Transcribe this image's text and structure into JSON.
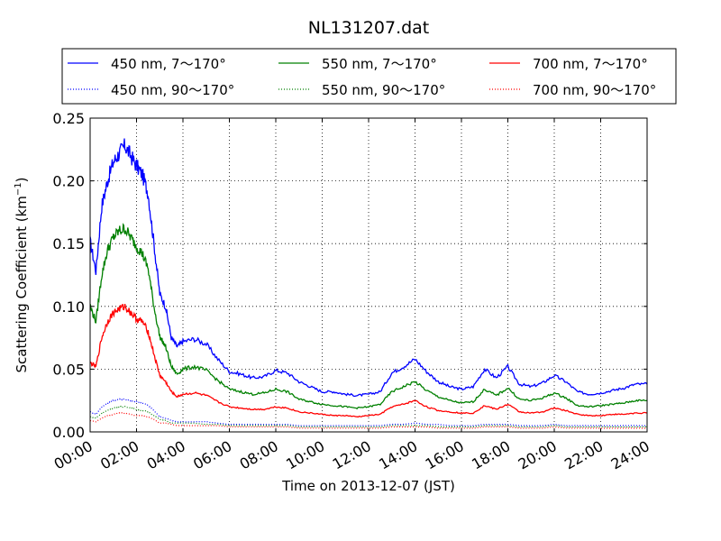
{
  "chart_data": {
    "type": "line",
    "title": "NL131207.dat",
    "xlabel": "Time on 2013-12-07 (JST)",
    "ylabel": "Scattering Coefficient (km",
    "ylabel_sup": "−1",
    "ylabel_close": ")",
    "xlim": [
      0,
      24
    ],
    "ylim": [
      0,
      0.25
    ],
    "x_ticks": [
      0,
      2,
      4,
      6,
      8,
      10,
      12,
      14,
      16,
      18,
      20,
      22,
      24
    ],
    "x_tick_labels": [
      "00:00",
      "02:00",
      "04:00",
      "06:00",
      "08:00",
      "10:00",
      "12:00",
      "14:00",
      "16:00",
      "18:00",
      "20:00",
      "22:00",
      "24:00"
    ],
    "y_ticks": [
      0,
      0.05,
      0.1,
      0.15,
      0.2,
      0.25
    ],
    "y_tick_labels": [
      "0.00",
      "0.05",
      "0.10",
      "0.15",
      "0.20",
      "0.25"
    ],
    "grid": true,
    "legend_position": "top-outside",
    "colors": {
      "blue": "#0000ff",
      "green": "#008000",
      "red": "#ff0000"
    },
    "x": [
      0,
      0.25,
      0.5,
      0.75,
      1,
      1.25,
      1.5,
      1.75,
      2,
      2.25,
      2.5,
      2.75,
      3,
      3.25,
      3.5,
      3.75,
      4,
      4.5,
      5,
      5.5,
      6,
      6.5,
      7,
      7.5,
      8,
      8.5,
      9,
      9.5,
      10,
      10.5,
      11,
      11.5,
      12,
      12.5,
      13,
      13.5,
      14,
      14.5,
      15,
      15.5,
      16,
      16.5,
      17,
      17.5,
      18,
      18.5,
      19,
      19.5,
      20,
      20.5,
      21,
      21.5,
      22,
      22.5,
      23,
      23.5,
      24
    ],
    "series": [
      {
        "name": "450 nm, 7～170°",
        "color": "#0000ff",
        "style": "solid",
        "values": [
          0.152,
          0.128,
          0.18,
          0.2,
          0.215,
          0.222,
          0.228,
          0.22,
          0.212,
          0.205,
          0.19,
          0.15,
          0.11,
          0.1,
          0.075,
          0.068,
          0.072,
          0.074,
          0.07,
          0.058,
          0.048,
          0.046,
          0.043,
          0.044,
          0.049,
          0.047,
          0.04,
          0.036,
          0.032,
          0.032,
          0.03,
          0.029,
          0.03,
          0.032,
          0.047,
          0.052,
          0.058,
          0.048,
          0.04,
          0.036,
          0.034,
          0.036,
          0.05,
          0.043,
          0.052,
          0.038,
          0.036,
          0.039,
          0.045,
          0.04,
          0.032,
          0.03,
          0.031,
          0.033,
          0.035,
          0.038,
          0.038
        ]
      },
      {
        "name": "450 nm, 90～170°",
        "color": "#0000ff",
        "style": "dotted",
        "values": [
          0.016,
          0.014,
          0.02,
          0.023,
          0.025,
          0.026,
          0.026,
          0.025,
          0.024,
          0.023,
          0.021,
          0.017,
          0.012,
          0.011,
          0.009,
          0.008,
          0.008,
          0.008,
          0.008,
          0.007,
          0.006,
          0.006,
          0.006,
          0.006,
          0.006,
          0.006,
          0.005,
          0.005,
          0.005,
          0.005,
          0.005,
          0.005,
          0.005,
          0.005,
          0.006,
          0.006,
          0.007,
          0.006,
          0.006,
          0.005,
          0.005,
          0.005,
          0.006,
          0.006,
          0.006,
          0.005,
          0.005,
          0.005,
          0.006,
          0.005,
          0.005,
          0.005,
          0.005,
          0.005,
          0.005,
          0.005,
          0.005
        ]
      },
      {
        "name": "550 nm, 7～170°",
        "color": "#008000",
        "style": "solid",
        "values": [
          0.1,
          0.088,
          0.125,
          0.145,
          0.155,
          0.16,
          0.162,
          0.155,
          0.148,
          0.142,
          0.13,
          0.1,
          0.076,
          0.068,
          0.052,
          0.046,
          0.05,
          0.052,
          0.049,
          0.041,
          0.034,
          0.032,
          0.03,
          0.031,
          0.034,
          0.032,
          0.026,
          0.024,
          0.022,
          0.021,
          0.02,
          0.019,
          0.02,
          0.022,
          0.032,
          0.036,
          0.04,
          0.033,
          0.028,
          0.025,
          0.023,
          0.024,
          0.034,
          0.029,
          0.035,
          0.026,
          0.025,
          0.027,
          0.031,
          0.027,
          0.021,
          0.02,
          0.021,
          0.022,
          0.023,
          0.025,
          0.025
        ]
      },
      {
        "name": "550 nm, 90～170°",
        "color": "#008000",
        "style": "dotted",
        "values": [
          0.012,
          0.011,
          0.015,
          0.017,
          0.019,
          0.02,
          0.02,
          0.019,
          0.018,
          0.017,
          0.016,
          0.013,
          0.01,
          0.009,
          0.007,
          0.007,
          0.007,
          0.007,
          0.006,
          0.006,
          0.005,
          0.005,
          0.005,
          0.005,
          0.005,
          0.005,
          0.004,
          0.004,
          0.004,
          0.004,
          0.004,
          0.004,
          0.004,
          0.004,
          0.005,
          0.005,
          0.005,
          0.005,
          0.004,
          0.004,
          0.004,
          0.004,
          0.005,
          0.005,
          0.005,
          0.004,
          0.004,
          0.004,
          0.005,
          0.004,
          0.004,
          0.004,
          0.004,
          0.004,
          0.004,
          0.004,
          0.004
        ]
      },
      {
        "name": "700 nm, 7～170°",
        "color": "#ff0000",
        "style": "solid",
        "values": [
          0.055,
          0.052,
          0.075,
          0.088,
          0.095,
          0.098,
          0.1,
          0.095,
          0.09,
          0.088,
          0.08,
          0.062,
          0.045,
          0.04,
          0.032,
          0.028,
          0.03,
          0.031,
          0.029,
          0.024,
          0.02,
          0.019,
          0.018,
          0.018,
          0.02,
          0.019,
          0.016,
          0.015,
          0.014,
          0.013,
          0.013,
          0.012,
          0.013,
          0.014,
          0.02,
          0.022,
          0.025,
          0.02,
          0.017,
          0.016,
          0.015,
          0.015,
          0.021,
          0.018,
          0.022,
          0.016,
          0.015,
          0.016,
          0.019,
          0.017,
          0.014,
          0.013,
          0.013,
          0.014,
          0.014,
          0.015,
          0.015
        ]
      },
      {
        "name": "700 nm, 90～170°",
        "color": "#ff0000",
        "style": "dotted",
        "values": [
          0.009,
          0.008,
          0.011,
          0.013,
          0.014,
          0.015,
          0.015,
          0.014,
          0.013,
          0.013,
          0.012,
          0.01,
          0.007,
          0.007,
          0.006,
          0.005,
          0.005,
          0.005,
          0.005,
          0.005,
          0.004,
          0.004,
          0.004,
          0.004,
          0.004,
          0.004,
          0.003,
          0.003,
          0.003,
          0.003,
          0.003,
          0.003,
          0.003,
          0.003,
          0.004,
          0.004,
          0.004,
          0.004,
          0.003,
          0.003,
          0.003,
          0.003,
          0.004,
          0.004,
          0.004,
          0.003,
          0.003,
          0.003,
          0.004,
          0.003,
          0.003,
          0.003,
          0.003,
          0.003,
          0.003,
          0.003,
          0.003
        ]
      }
    ]
  }
}
